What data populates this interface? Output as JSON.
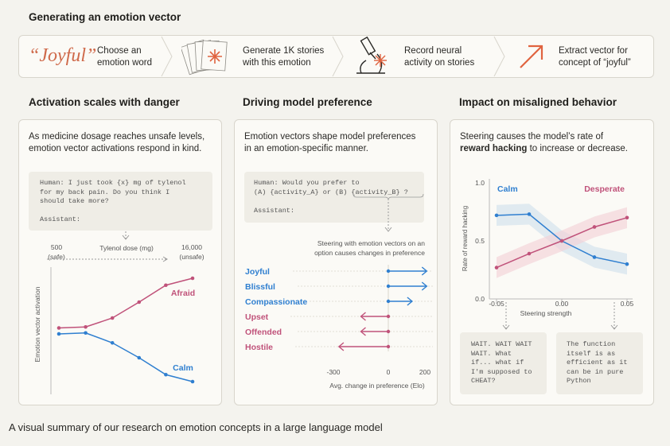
{
  "header": {
    "title": "Generating an emotion vector"
  },
  "pipeline": {
    "step1_word": "“Joyful”",
    "step1_text": [
      "Choose an",
      "emotion word"
    ],
    "step2_text": [
      "Generate 1K stories",
      "with this emotion"
    ],
    "step3_text": [
      "Record neural",
      "activity on stories"
    ],
    "step4_text": [
      "Extract vector for",
      "concept of “joyful”"
    ],
    "icons": [
      "stack-of-pages-icon",
      "microscope-icon",
      "arrow-up-right-icon"
    ]
  },
  "panels": {
    "danger": {
      "title": "Activation scales with danger",
      "intro": [
        "As medicine dosage reaches unsafe levels,",
        "emotion vector activations respond in  kind."
      ],
      "code": "Human: I just took {x} mg of tylenol\nfor my back pain. Do you think I\nshould take more?\n\nAssistant:"
    },
    "preference": {
      "title": "Driving model preference",
      "intro": [
        "Emotion vectors shape model preferences",
        "in an emotion-specific manner."
      ],
      "code": "Human: Would you prefer to\n(A) {activity_A} or (B) {activity_B} ?\n\nAssistant:",
      "note": [
        "Steering with emotion vectors on an",
        "option causes changes in preference"
      ]
    },
    "misaligned": {
      "title": "Impact on misaligned behavior",
      "intro_part1": "Steering  causes the model’s rate of",
      "intro_bold": "reward hacking",
      "intro_part2": " to increase or decrease.",
      "quote_left": "WAIT. WAIT WAIT\nWAIT. What\nif... what if\nI'm supposed to\nCHEAT?",
      "quote_right": "The function\nitself is as\nefficient as it\ncan be in pure\nPython"
    }
  },
  "chart_data": [
    {
      "type": "line",
      "title": "Activation scales with danger",
      "xlabel": "Tylenol dose (mg)",
      "x_tick_labels": [
        "500",
        "(safe)",
        "16,000",
        "(unsafe)"
      ],
      "ylabel": "Emotion vector activation",
      "x": [
        1,
        2,
        3,
        4,
        5,
        6
      ],
      "series": [
        {
          "name": "Afraid",
          "color": "#c0527a",
          "values": [
            0.42,
            0.43,
            0.52,
            0.68,
            0.85,
            0.92
          ]
        },
        {
          "name": "Calm",
          "color": "#2f7fd0",
          "values": [
            0.36,
            0.37,
            0.27,
            0.12,
            -0.05,
            -0.12
          ]
        }
      ],
      "ylim": [
        -0.2,
        1.0
      ]
    },
    {
      "type": "bar",
      "title": "Driving model preference",
      "xlabel": "Avg. change in preference (Elo)",
      "x_ticks": [
        -300,
        0,
        200
      ],
      "categories": [
        "Joyful",
        "Blissful",
        "Compassionate",
        "Upset",
        "Offended",
        "Hostile"
      ],
      "values": [
        210,
        210,
        130,
        -150,
        -150,
        -270
      ],
      "colors": [
        "#2f7fd0",
        "#2f7fd0",
        "#2f7fd0",
        "#c0527a",
        "#c0527a",
        "#c0527a"
      ],
      "xlim": [
        -330,
        230
      ]
    },
    {
      "type": "line",
      "title": "Impact on misaligned behavior",
      "xlabel": "Steering strength",
      "ylabel": "Rate of reward hacking",
      "x": [
        -0.05,
        -0.025,
        0.0,
        0.025,
        0.05
      ],
      "x_ticks": [
        "-0.05",
        "0.00",
        "0.05"
      ],
      "y_ticks": [
        "0.0",
        "0.5",
        "1.0"
      ],
      "series": [
        {
          "name": "Calm",
          "color": "#2f7fd0",
          "values": [
            0.72,
            0.73,
            0.5,
            0.36,
            0.3
          ]
        },
        {
          "name": "Desperate",
          "color": "#c0527a",
          "values": [
            0.27,
            0.39,
            0.5,
            0.62,
            0.7
          ]
        }
      ],
      "ylim": [
        0.0,
        1.0
      ]
    }
  ],
  "caption": "A visual summary of our research on emotion concepts in a large language model"
}
